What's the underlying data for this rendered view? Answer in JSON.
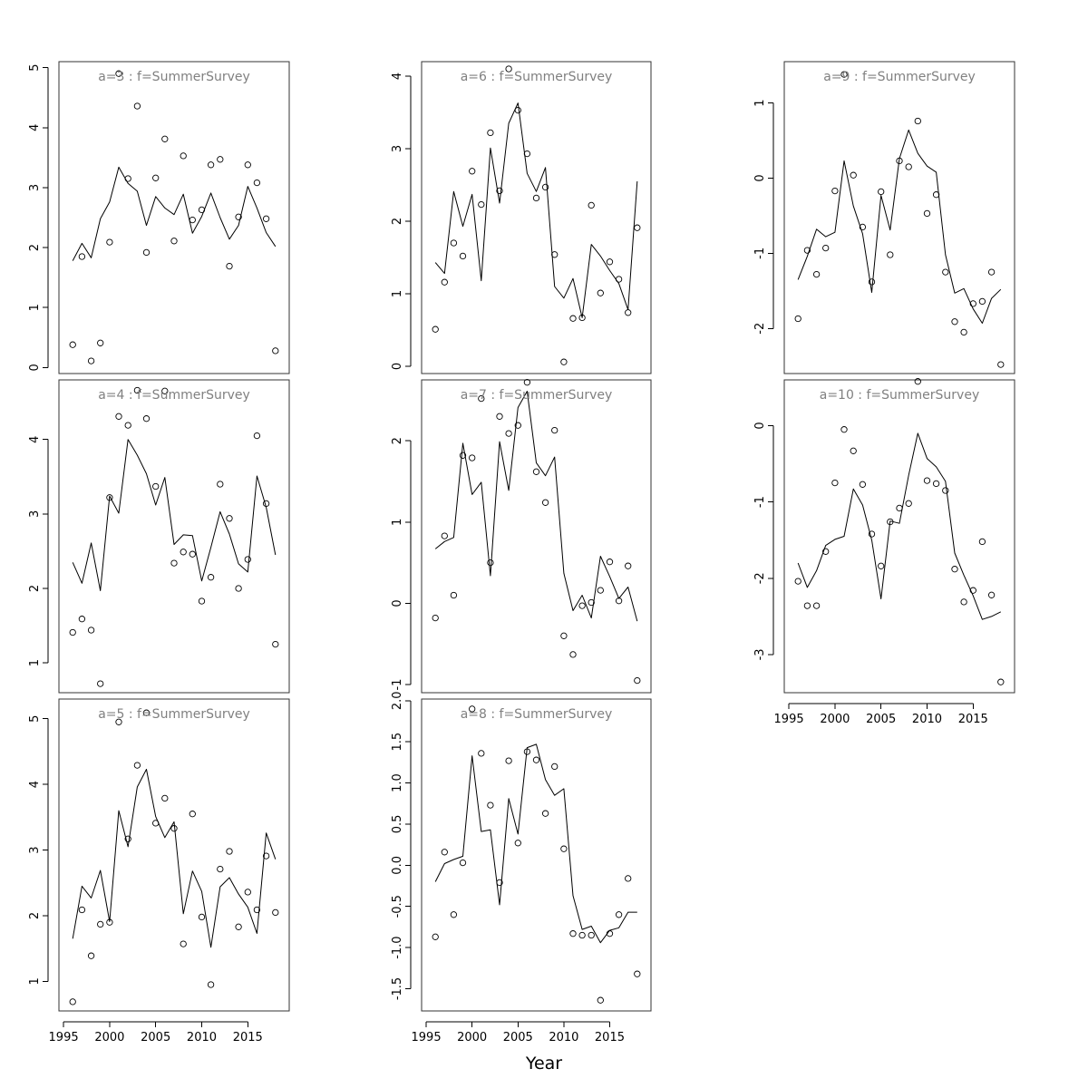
{
  "chart_data": {
    "type": "scatter",
    "layout": "multi-panel grid, 3 columns, panels filled column-wise",
    "xlabel": "Year",
    "x_ticks": [
      1995,
      2000,
      2005,
      2010,
      2015
    ],
    "xlim": [
      1994.5,
      2019.5
    ],
    "x": [
      1996,
      1997,
      1998,
      1999,
      2000,
      2001,
      2002,
      2003,
      2004,
      2005,
      2006,
      2007,
      2008,
      2009,
      2010,
      2011,
      2012,
      2013,
      2014,
      2015,
      2016,
      2017,
      2018
    ],
    "point_symbol": "open circle",
    "line_style": "solid black line",
    "panels": [
      {
        "title": "a=3  :  f=SummerSurvey",
        "ylim": [
          -0.1,
          5.1
        ],
        "y_ticks": [
          "0",
          "1",
          "2",
          "3",
          "4",
          "5"
        ],
        "observed": [
          0.38,
          1.85,
          0.11,
          0.41,
          2.09,
          4.9,
          3.15,
          4.36,
          1.92,
          3.16,
          3.81,
          2.11,
          3.53,
          2.46,
          2.63,
          3.38,
          3.47,
          1.69,
          2.51,
          3.38,
          3.08,
          2.48,
          0.28
        ],
        "fitted": [
          1.78,
          2.07,
          1.83,
          2.48,
          2.76,
          3.34,
          3.07,
          2.94,
          2.37,
          2.85,
          2.66,
          2.55,
          2.89,
          2.24,
          2.52,
          2.91,
          2.5,
          2.14,
          2.37,
          3.02,
          2.66,
          2.25,
          2.02
        ]
      },
      {
        "title": "a=4  :  f=SummerSurvey",
        "ylim": [
          0.6,
          4.8
        ],
        "y_ticks": [
          "1",
          "2",
          "3",
          "4"
        ],
        "observed": [
          1.41,
          1.59,
          1.44,
          0.72,
          3.22,
          4.31,
          4.19,
          4.66,
          4.28,
          3.37,
          4.65,
          2.34,
          2.49,
          2.46,
          1.83,
          2.15,
          3.4,
          2.94,
          2.0,
          2.39,
          4.05,
          3.14,
          1.25
        ],
        "fitted": [
          2.35,
          2.07,
          2.61,
          1.97,
          3.24,
          3.01,
          4.0,
          3.79,
          3.54,
          3.12,
          3.49,
          2.59,
          2.72,
          2.71,
          2.1,
          2.55,
          3.03,
          2.73,
          2.33,
          2.22,
          3.51,
          3.09,
          2.45
        ]
      },
      {
        "title": "a=5  :  f=SummerSurvey",
        "ylim": [
          0.55,
          5.3
        ],
        "y_ticks": [
          "1",
          "2",
          "3",
          "4",
          "5"
        ],
        "observed": [
          0.69,
          2.09,
          1.39,
          1.87,
          1.9,
          4.95,
          3.17,
          4.29,
          5.09,
          3.41,
          3.79,
          3.33,
          1.57,
          3.55,
          1.98,
          0.95,
          2.71,
          2.98,
          1.83,
          2.36,
          2.09,
          2.91,
          2.05
        ],
        "fitted": [
          1.65,
          2.45,
          2.27,
          2.69,
          1.91,
          3.6,
          3.05,
          3.96,
          4.23,
          3.51,
          3.19,
          3.43,
          2.03,
          2.68,
          2.37,
          1.52,
          2.44,
          2.58,
          2.33,
          2.13,
          1.73,
          3.26,
          2.86
        ]
      },
      {
        "title": "a=6  :  f=SummerSurvey",
        "ylim": [
          -0.1,
          4.2
        ],
        "y_ticks": [
          "0",
          "1",
          "2",
          "3",
          "4"
        ],
        "observed": [
          0.51,
          1.16,
          1.7,
          1.52,
          2.69,
          2.23,
          3.22,
          2.42,
          4.1,
          3.53,
          2.93,
          2.32,
          2.47,
          1.54,
          0.06,
          0.66,
          0.67,
          2.22,
          1.01,
          1.44,
          1.2,
          0.74,
          1.91
        ],
        "fitted": [
          1.43,
          1.28,
          2.41,
          1.93,
          2.37,
          1.18,
          3.01,
          2.25,
          3.35,
          3.63,
          2.66,
          2.41,
          2.74,
          1.1,
          0.94,
          1.21,
          0.67,
          1.68,
          1.52,
          1.32,
          1.14,
          0.78,
          2.55
        ]
      },
      {
        "title": "a=7  :  f=SummerSurvey",
        "ylim": [
          -1.1,
          2.75
        ],
        "y_ticks": [
          "-1",
          "0",
          "1",
          "2"
        ],
        "observed": [
          -0.18,
          0.83,
          0.1,
          1.82,
          1.79,
          2.52,
          0.5,
          2.3,
          2.09,
          2.19,
          2.72,
          1.62,
          1.24,
          2.13,
          -0.4,
          -0.63,
          -0.03,
          0.01,
          0.16,
          0.51,
          0.03,
          0.46,
          -0.95
        ],
        "fitted": [
          0.67,
          0.76,
          0.81,
          1.97,
          1.34,
          1.49,
          0.34,
          1.99,
          1.39,
          2.41,
          2.61,
          1.73,
          1.57,
          1.8,
          0.37,
          -0.09,
          0.1,
          -0.18,
          0.58,
          0.33,
          0.06,
          0.2,
          -0.22
        ]
      },
      {
        "title": "a=8  :  f=SummerSurvey",
        "ylim": [
          -1.77,
          2.02
        ],
        "y_ticks": [
          "-1.5",
          "-1.0",
          "-0.5",
          "0.0",
          "0.5",
          "1.0",
          "1.5",
          "2.0"
        ],
        "observed": [
          -0.87,
          0.16,
          -0.6,
          0.03,
          1.9,
          1.36,
          0.73,
          -0.21,
          1.27,
          0.27,
          1.38,
          1.28,
          0.63,
          1.2,
          0.2,
          -0.83,
          -0.85,
          -0.85,
          -1.64,
          -0.83,
          -0.6,
          -0.16,
          -1.32
        ],
        "fitted": [
          -0.2,
          0.02,
          0.07,
          0.11,
          1.33,
          0.41,
          0.43,
          -0.48,
          0.81,
          0.38,
          1.43,
          1.47,
          1.04,
          0.85,
          0.93,
          -0.37,
          -0.78,
          -0.74,
          -0.94,
          -0.79,
          -0.76,
          -0.57,
          -0.57
        ]
      },
      {
        "title": "a=9  :  f=SummerSurvey",
        "ylim": [
          -2.6,
          1.55
        ],
        "y_ticks": [
          "-2",
          "-1",
          "0",
          "1"
        ],
        "observed": [
          -1.87,
          -0.96,
          -1.28,
          -0.93,
          -0.17,
          1.38,
          0.04,
          -0.65,
          -1.38,
          -0.18,
          -1.02,
          0.23,
          0.15,
          0.76,
          -0.47,
          -0.22,
          -1.25,
          -1.91,
          -2.05,
          -1.67,
          -1.64,
          -1.25,
          -2.48
        ],
        "fitted": [
          -1.35,
          -1.04,
          -0.68,
          -0.78,
          -0.72,
          0.23,
          -0.37,
          -0.74,
          -1.52,
          -0.23,
          -0.69,
          0.26,
          0.64,
          0.33,
          0.16,
          0.08,
          -1.02,
          -1.53,
          -1.47,
          -1.74,
          -1.93,
          -1.6,
          -1.48
        ]
      },
      {
        "title": "a=10  :  f=SummerSurvey",
        "ylim": [
          -3.5,
          0.6
        ],
        "y_ticks": [
          "-3",
          "-2",
          "-1",
          "0"
        ],
        "observed": [
          -2.04,
          -2.36,
          -2.36,
          -1.65,
          -0.75,
          -0.05,
          -0.33,
          -0.77,
          -1.42,
          -1.84,
          -1.26,
          -1.08,
          -1.02,
          0.58,
          -0.72,
          -0.76,
          -0.85,
          -1.88,
          -2.31,
          -2.16,
          -1.52,
          -2.22,
          -3.36
        ],
        "fitted": [
          -1.8,
          -2.12,
          -1.9,
          -1.57,
          -1.49,
          -1.45,
          -0.83,
          -1.04,
          -1.5,
          -2.27,
          -1.25,
          -1.28,
          -0.65,
          -0.1,
          -0.43,
          -0.54,
          -0.73,
          -1.67,
          -1.96,
          -2.23,
          -2.54,
          -2.5,
          -2.44
        ]
      }
    ]
  }
}
